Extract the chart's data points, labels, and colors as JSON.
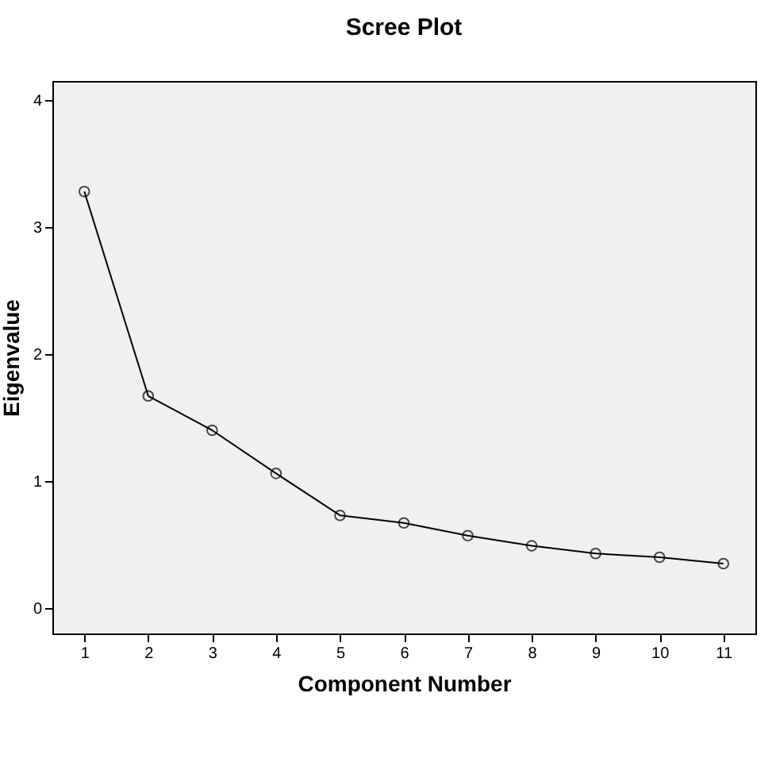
{
  "chart_data": {
    "type": "line",
    "title": "Scree Plot",
    "xlabel": "Component Number",
    "ylabel": "Eigenvalue",
    "categories": [
      "1",
      "2",
      "3",
      "4",
      "5",
      "6",
      "7",
      "8",
      "9",
      "10",
      "11"
    ],
    "series": [
      {
        "color": "#000000",
        "values": [
          3.28,
          1.67,
          1.4,
          1.06,
          0.73,
          0.67,
          0.57,
          0.49,
          0.43,
          0.4,
          0.35
        ]
      }
    ],
    "ylim": [
      -0.2,
      4.15
    ],
    "yticks": [
      0,
      1,
      2,
      3,
      4
    ],
    "grid": false,
    "legend": false,
    "marker": "circle",
    "line_style": "solid"
  }
}
